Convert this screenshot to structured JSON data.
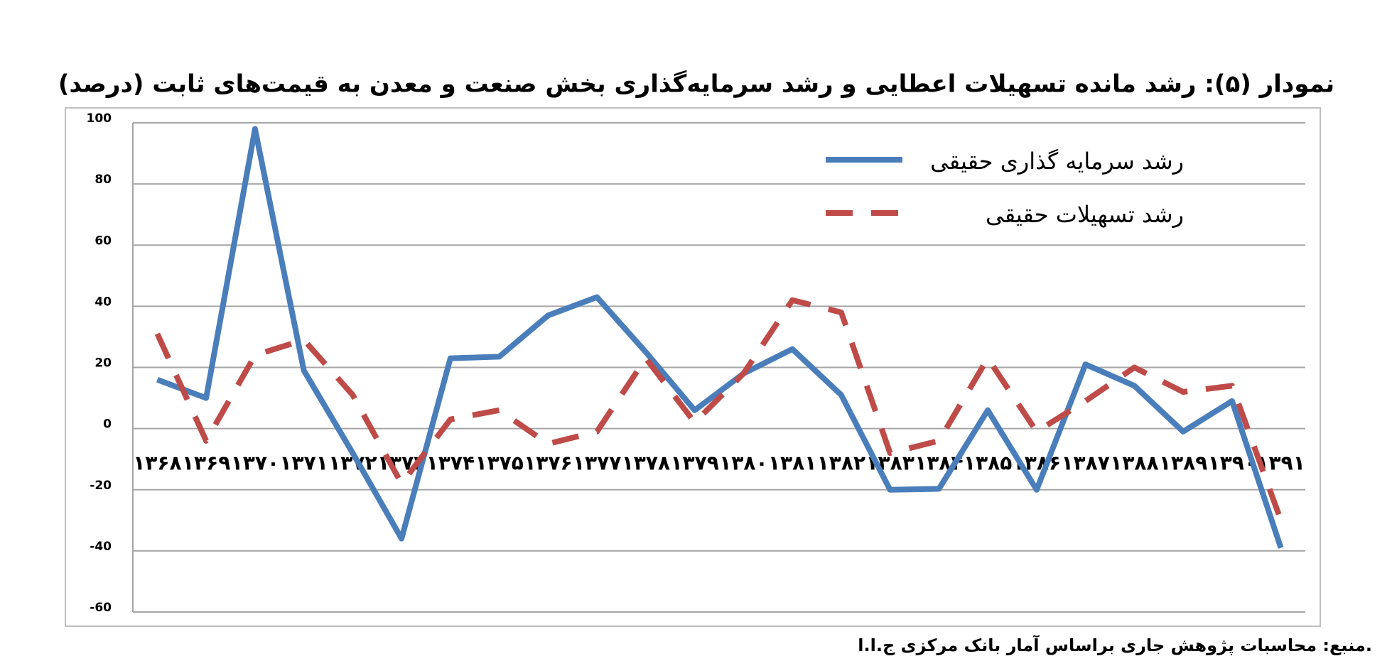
{
  "chart_data": {
    "type": "line",
    "title": "نمودار (۵): رشد مانده تسهیلات اعطایی و رشد سرمایه‌گذاری بخش صنعت و معدن به قیمت‌های ثابت (درصد)",
    "source": "منبع: محاسبات پژوهش جاری براساس آمار بانک مرکزی ج.ا.ا.",
    "categories": [
      "۱۳۶۸",
      "۱۳۶۹",
      "۱۳۷۰",
      "۱۳۷۱",
      "۱۳۷۲",
      "۱۳۷۳",
      "۱۳۷۴",
      "۱۳۷۵",
      "۱۳۷۶",
      "۱۳۷۷",
      "۱۳۷۸",
      "۱۳۷۹",
      "۱۳۸۰",
      "۱۳۸۱",
      "۱۳۸۲",
      "۱۳۸۳",
      "۱۳۸۴",
      "۱۳۸۵",
      "۱۳۸۶",
      "۱۳۸۷",
      "۱۳۸۸",
      "۱۳۸۹",
      "۱۳۹۰",
      "۱۳۹۱"
    ],
    "series": [
      {
        "name": "رشد سرمایه گذاری حقیقی",
        "color": "#4a7ebb",
        "dash": false,
        "values": [
          16,
          10,
          98,
          19,
          -8,
          -36,
          23,
          23.5,
          37,
          43,
          25,
          6,
          18,
          26,
          11,
          -20,
          -19.7,
          6,
          -20,
          21,
          14,
          -1,
          9,
          -39
        ]
      },
      {
        "name": "رشد تسهیلات حقیقی",
        "color": "#be4b48",
        "dash": true,
        "values": [
          31,
          -4,
          24,
          29,
          11,
          -18,
          3,
          6,
          -5,
          -1,
          23,
          2,
          18,
          42,
          38,
          -8,
          -4,
          23,
          -1,
          9,
          20,
          12,
          14,
          -30
        ]
      }
    ],
    "ylim": [
      -60,
      100
    ],
    "yticks": [
      -60,
      -40,
      -20,
      0,
      20,
      40,
      60,
      80,
      100
    ],
    "grid": true
  }
}
